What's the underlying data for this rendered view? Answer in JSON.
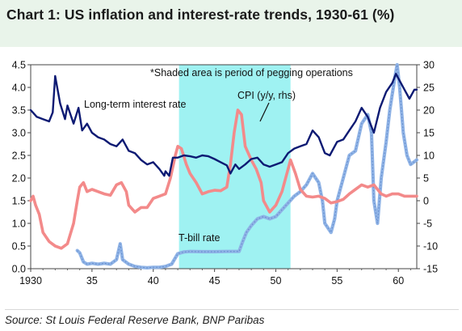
{
  "title": "Chart 1: US inflation and interest-rate trends, 1930-61 (%)",
  "source": "Source: St Louis Federal Reserve Bank, BNP Paribas",
  "colors": {
    "background_band": "#e9f4ea",
    "shaded_period": "#9ff2f2",
    "long_term_rate": "#0d1a73",
    "cpi": "#f38a8a",
    "tbill": "#8fb3e6"
  },
  "chart_data": {
    "type": "line",
    "x_ticks": [
      {
        "x": 1930,
        "label": "1930"
      },
      {
        "x": 1935,
        "label": "35"
      },
      {
        "x": 1940,
        "label": "40"
      },
      {
        "x": 1945,
        "label": "45"
      },
      {
        "x": 1950,
        "label": "50"
      },
      {
        "x": 1955,
        "label": "55"
      },
      {
        "x": 1960,
        "label": "60"
      }
    ],
    "xlim": [
      1930,
      1961.5
    ],
    "y_left": {
      "ticks": [
        "0.0",
        "0.5",
        "1.0",
        "1.5",
        "2.0",
        "2.5",
        "3.0",
        "3.5",
        "4.0",
        "4.5"
      ],
      "lim": [
        0,
        4.5
      ]
    },
    "y_right": {
      "ticks": [
        "-15",
        "-10",
        "-5",
        "0",
        "5",
        "10",
        "15",
        "20",
        "25",
        "30"
      ],
      "lim": [
        -15,
        30
      ]
    },
    "shaded_period": [
      1942.1,
      1951.2
    ],
    "annotations": {
      "shaded_note": "*Shaded area is period of pegging operations",
      "long_term_label": "Long-term interest rate",
      "cpi_label": "CPI (y/y, rhs)",
      "tbill_label": "T-bill rate"
    },
    "series": [
      {
        "name": "Long-term interest rate",
        "axis": "left",
        "points": [
          [
            1930,
            3.5
          ],
          [
            1930.5,
            3.35
          ],
          [
            1931,
            3.3
          ],
          [
            1931.5,
            3.25
          ],
          [
            1931.8,
            3.45
          ],
          [
            1932,
            4.25
          ],
          [
            1932.4,
            3.65
          ],
          [
            1932.8,
            3.3
          ],
          [
            1933,
            3.6
          ],
          [
            1933.5,
            3.2
          ],
          [
            1933.9,
            3.55
          ],
          [
            1934.2,
            3.05
          ],
          [
            1934.6,
            3.2
          ],
          [
            1935,
            3.0
          ],
          [
            1935.5,
            2.9
          ],
          [
            1936,
            2.85
          ],
          [
            1936.5,
            2.75
          ],
          [
            1937,
            2.7
          ],
          [
            1937.5,
            2.85
          ],
          [
            1938,
            2.6
          ],
          [
            1938.5,
            2.55
          ],
          [
            1939,
            2.4
          ],
          [
            1939.5,
            2.3
          ],
          [
            1940,
            2.35
          ],
          [
            1940.5,
            2.2
          ],
          [
            1940.9,
            2.05
          ],
          [
            1941,
            2.15
          ],
          [
            1941.3,
            2.05
          ],
          [
            1941.6,
            2.45
          ],
          [
            1942,
            2.45
          ],
          [
            1942.5,
            2.5
          ],
          [
            1943,
            2.48
          ],
          [
            1943.5,
            2.45
          ],
          [
            1944,
            2.5
          ],
          [
            1944.5,
            2.48
          ],
          [
            1945,
            2.42
          ],
          [
            1945.5,
            2.35
          ],
          [
            1946,
            2.28
          ],
          [
            1946.3,
            2.1
          ],
          [
            1946.7,
            2.3
          ],
          [
            1947,
            2.2
          ],
          [
            1947.5,
            2.3
          ],
          [
            1948,
            2.42
          ],
          [
            1948.5,
            2.45
          ],
          [
            1949,
            2.3
          ],
          [
            1949.5,
            2.25
          ],
          [
            1950,
            2.3
          ],
          [
            1950.5,
            2.35
          ],
          [
            1951,
            2.55
          ],
          [
            1951.5,
            2.65
          ],
          [
            1952,
            2.7
          ],
          [
            1952.5,
            2.75
          ],
          [
            1953,
            3.05
          ],
          [
            1953.5,
            2.9
          ],
          [
            1954,
            2.55
          ],
          [
            1954.4,
            2.5
          ],
          [
            1955,
            2.8
          ],
          [
            1955.5,
            2.85
          ],
          [
            1956,
            3.05
          ],
          [
            1956.5,
            3.25
          ],
          [
            1957,
            3.55
          ],
          [
            1957.5,
            3.35
          ],
          [
            1958,
            3.0
          ],
          [
            1958.5,
            3.55
          ],
          [
            1959,
            3.9
          ],
          [
            1959.5,
            4.1
          ],
          [
            1959.8,
            4.3
          ],
          [
            1960,
            4.2
          ],
          [
            1960.5,
            3.95
          ],
          [
            1960.9,
            3.75
          ],
          [
            1961.3,
            3.95
          ],
          [
            1961.5,
            3.95
          ]
        ]
      },
      {
        "name": "CPI (y/y, rhs)",
        "axis": "right",
        "points": [
          [
            1930,
            0
          ],
          [
            1930.2,
            1
          ],
          [
            1930.4,
            -1
          ],
          [
            1930.7,
            -3
          ],
          [
            1931,
            -7
          ],
          [
            1931.5,
            -9
          ],
          [
            1932,
            -10
          ],
          [
            1932.5,
            -10.5
          ],
          [
            1933,
            -9.5
          ],
          [
            1933.5,
            -5
          ],
          [
            1933.8,
            0
          ],
          [
            1934,
            3
          ],
          [
            1934.3,
            4
          ],
          [
            1934.6,
            2
          ],
          [
            1935,
            2.5
          ],
          [
            1935.5,
            2
          ],
          [
            1936,
            1.5
          ],
          [
            1936.5,
            1.2
          ],
          [
            1937,
            3.5
          ],
          [
            1937.4,
            4
          ],
          [
            1937.8,
            2
          ],
          [
            1938,
            -1
          ],
          [
            1938.5,
            -2.5
          ],
          [
            1939,
            -1.5
          ],
          [
            1939.5,
            -1.5
          ],
          [
            1940,
            0.5
          ],
          [
            1940.5,
            1
          ],
          [
            1941,
            1.5
          ],
          [
            1941.4,
            5
          ],
          [
            1941.8,
            10
          ],
          [
            1942,
            12
          ],
          [
            1942.3,
            11.5
          ],
          [
            1942.7,
            8
          ],
          [
            1943,
            6
          ],
          [
            1943.5,
            4
          ],
          [
            1944,
            1.5
          ],
          [
            1944.5,
            2
          ],
          [
            1945,
            2.3
          ],
          [
            1945.5,
            2.2
          ],
          [
            1946,
            3
          ],
          [
            1946.3,
            8
          ],
          [
            1946.6,
            15
          ],
          [
            1946.9,
            20
          ],
          [
            1947.2,
            19
          ],
          [
            1947.5,
            12
          ],
          [
            1948,
            9
          ],
          [
            1948.4,
            7
          ],
          [
            1948.8,
            4
          ],
          [
            1949,
            0
          ],
          [
            1949.5,
            -2.5
          ],
          [
            1950,
            -1
          ],
          [
            1950.5,
            2
          ],
          [
            1951,
            7
          ],
          [
            1951.2,
            9
          ],
          [
            1951.6,
            6
          ],
          [
            1952,
            2.5
          ],
          [
            1952.5,
            1
          ],
          [
            1953,
            0.8
          ],
          [
            1953.5,
            1
          ],
          [
            1954,
            0.5
          ],
          [
            1954.5,
            -0.5
          ],
          [
            1955,
            -0.2
          ],
          [
            1955.5,
            0.3
          ],
          [
            1956,
            1.5
          ],
          [
            1956.5,
            2.5
          ],
          [
            1957,
            3.5
          ],
          [
            1957.5,
            3
          ],
          [
            1958,
            3.5
          ],
          [
            1958.3,
            2.5
          ],
          [
            1958.6,
            1.5
          ],
          [
            1959,
            1
          ],
          [
            1959.5,
            1.5
          ],
          [
            1960,
            1.5
          ],
          [
            1960.5,
            1
          ],
          [
            1961,
            1
          ],
          [
            1961.5,
            1
          ]
        ]
      },
      {
        "name": "T-bill rate",
        "axis": "left",
        "points": [
          [
            1933.8,
            0.4
          ],
          [
            1934,
            0.35
          ],
          [
            1934.3,
            0.15
          ],
          [
            1934.6,
            0.1
          ],
          [
            1935,
            0.12
          ],
          [
            1935.5,
            0.1
          ],
          [
            1936,
            0.12
          ],
          [
            1936.5,
            0.1
          ],
          [
            1937,
            0.2
          ],
          [
            1937.3,
            0.55
          ],
          [
            1937.5,
            0.2
          ],
          [
            1938,
            0.1
          ],
          [
            1938.5,
            0.05
          ],
          [
            1939,
            0.03
          ],
          [
            1939.5,
            0.02
          ],
          [
            1940,
            0.03
          ],
          [
            1940.5,
            0.03
          ],
          [
            1941,
            0.05
          ],
          [
            1941.5,
            0.1
          ],
          [
            1942,
            0.33
          ],
          [
            1942.5,
            0.37
          ],
          [
            1943,
            0.38
          ],
          [
            1944,
            0.375
          ],
          [
            1945,
            0.375
          ],
          [
            1946,
            0.38
          ],
          [
            1947,
            0.38
          ],
          [
            1947.3,
            0.6
          ],
          [
            1947.6,
            0.8
          ],
          [
            1948,
            0.95
          ],
          [
            1948.5,
            1.1
          ],
          [
            1949,
            1.15
          ],
          [
            1949.5,
            1.1
          ],
          [
            1950,
            1.15
          ],
          [
            1950.5,
            1.3
          ],
          [
            1951,
            1.45
          ],
          [
            1951.5,
            1.6
          ],
          [
            1952,
            1.7
          ],
          [
            1952.5,
            1.85
          ],
          [
            1953,
            2.1
          ],
          [
            1953.5,
            1.9
          ],
          [
            1953.8,
            1.5
          ],
          [
            1954,
            1.0
          ],
          [
            1954.5,
            0.8
          ],
          [
            1954.8,
            1.1
          ],
          [
            1955,
            1.5
          ],
          [
            1955.5,
            2.0
          ],
          [
            1956,
            2.5
          ],
          [
            1956.5,
            2.6
          ],
          [
            1957,
            3.2
          ],
          [
            1957.5,
            3.4
          ],
          [
            1957.8,
            3.0
          ],
          [
            1958,
            1.5
          ],
          [
            1958.3,
            1.0
          ],
          [
            1958.6,
            2.0
          ],
          [
            1959,
            2.8
          ],
          [
            1959.3,
            3.5
          ],
          [
            1959.7,
            4.2
          ],
          [
            1959.9,
            4.5
          ],
          [
            1960.1,
            4.0
          ],
          [
            1960.4,
            3.0
          ],
          [
            1960.7,
            2.5
          ],
          [
            1961,
            2.3
          ],
          [
            1961.5,
            2.4
          ]
        ]
      }
    ]
  }
}
